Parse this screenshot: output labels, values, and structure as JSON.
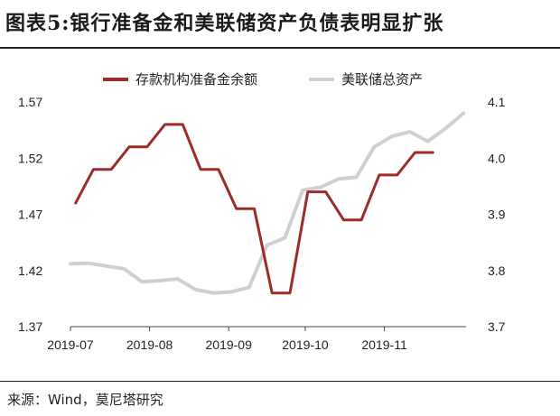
{
  "header": {
    "title": "图表5:银行准备金和美联储资产负债表明显扩张"
  },
  "footer": {
    "source": "来源：Wind，莫尼塔研究"
  },
  "chart_data": {
    "type": "line",
    "x_tick_labels": [
      "2019-07",
      "2019-08",
      "2019-09",
      "2019-10",
      "2019-11"
    ],
    "yaxis_left": {
      "ticks": [
        "1.57",
        "1.52",
        "1.47",
        "1.42",
        "1.37"
      ],
      "ylim": [
        1.37,
        1.57
      ]
    },
    "yaxis_right": {
      "ticks": [
        "4.1",
        "4.0",
        "3.9",
        "3.8",
        "3.7"
      ],
      "ylim": [
        3.7,
        4.1
      ]
    },
    "legend_position": "top",
    "colors": {
      "reserves": "#9b2c2a",
      "fed_assets": "#cfcfcf"
    },
    "series": [
      {
        "name": "存款机构准备金余额",
        "axis": "left",
        "color": "#9b2c2a",
        "x": [
          "2019-07-03",
          "2019-07-10",
          "2019-07-17",
          "2019-07-24",
          "2019-07-31",
          "2019-08-07",
          "2019-08-14",
          "2019-08-21",
          "2019-08-28",
          "2019-09-04",
          "2019-09-11",
          "2019-09-18",
          "2019-09-25",
          "2019-10-02",
          "2019-10-09",
          "2019-10-16",
          "2019-10-23",
          "2019-10-30",
          "2019-11-06",
          "2019-11-13",
          "2019-11-20"
        ],
        "values": [
          1.48,
          1.51,
          1.51,
          1.53,
          1.53,
          1.55,
          1.55,
          1.51,
          1.51,
          1.475,
          1.475,
          1.4,
          1.4,
          1.49,
          1.49,
          1.465,
          1.465,
          1.505,
          1.505,
          1.525,
          1.525
        ]
      },
      {
        "name": "美联储总资产",
        "axis": "right",
        "color": "#cfcfcf",
        "x": [
          "2019-07-01",
          "2019-07-08",
          "2019-07-15",
          "2019-07-22",
          "2019-07-29",
          "2019-08-05",
          "2019-08-12",
          "2019-08-19",
          "2019-08-26",
          "2019-09-02",
          "2019-09-09",
          "2019-09-16",
          "2019-09-23",
          "2019-09-30",
          "2019-10-07",
          "2019-10-14",
          "2019-10-21",
          "2019-10-28",
          "2019-11-04",
          "2019-11-11",
          "2019-11-18",
          "2019-11-25",
          "2019-12-02"
        ],
        "values": [
          3.812,
          3.813,
          3.808,
          3.803,
          3.78,
          3.782,
          3.785,
          3.766,
          3.76,
          3.762,
          3.77,
          3.845,
          3.858,
          3.943,
          3.948,
          3.963,
          3.966,
          4.02,
          4.039,
          4.047,
          4.03,
          4.053,
          4.08
        ]
      }
    ]
  }
}
